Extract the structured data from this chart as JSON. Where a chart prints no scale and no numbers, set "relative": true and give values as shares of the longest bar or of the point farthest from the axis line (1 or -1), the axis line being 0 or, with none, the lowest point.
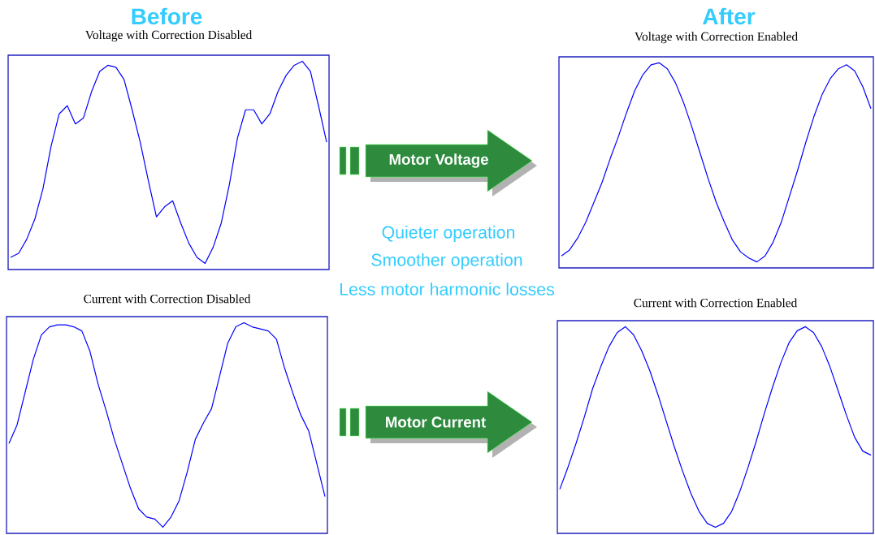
{
  "chart_data": [
    {
      "type": "line",
      "title": "Voltage with Correction Disabled",
      "relative": true,
      "color": "#0000ff",
      "categories": [
        null,
        null,
        null,
        null,
        null,
        null,
        null,
        null,
        null,
        null,
        null,
        null,
        null,
        null,
        null,
        null,
        null,
        null,
        null,
        null,
        null,
        null,
        null,
        null,
        null,
        null,
        null,
        null,
        null,
        null,
        null,
        null,
        null,
        null,
        null,
        null,
        null,
        null,
        null,
        null
      ],
      "values": [
        0.03,
        0.05,
        0.12,
        0.22,
        0.37,
        0.58,
        0.74,
        0.78,
        0.69,
        0.72,
        0.85,
        0.95,
        0.98,
        0.97,
        0.91,
        0.76,
        0.6,
        0.41,
        0.23,
        0.28,
        0.31,
        0.2,
        0.1,
        0.03,
        0,
        0.08,
        0.2,
        0.39,
        0.62,
        0.76,
        0.76,
        0.69,
        0.74,
        0.85,
        0.93,
        0.98,
        1,
        0.95,
        0.78,
        0.6
      ]
    },
    {
      "type": "line",
      "title": "Voltage with Correction Enabled",
      "relative": true,
      "color": "#0000ff",
      "categories": [
        null,
        null,
        null,
        null,
        null,
        null,
        null,
        null,
        null,
        null,
        null,
        null,
        null,
        null,
        null,
        null,
        null,
        null,
        null,
        null,
        null,
        null,
        null,
        null,
        null,
        null,
        null,
        null,
        null,
        null,
        null,
        null,
        null,
        null,
        null,
        null,
        null,
        null,
        null
      ],
      "values": [
        0.03,
        0.06,
        0.12,
        0.2,
        0.3,
        0.4,
        0.52,
        0.63,
        0.75,
        0.86,
        0.94,
        0.99,
        1,
        0.97,
        0.9,
        0.8,
        0.68,
        0.55,
        0.42,
        0.3,
        0.2,
        0.11,
        0.05,
        0.02,
        0,
        0.03,
        0.1,
        0.2,
        0.33,
        0.46,
        0.6,
        0.73,
        0.84,
        0.92,
        0.97,
        0.99,
        0.96,
        0.88,
        0.77
      ]
    },
    {
      "type": "line",
      "title": "Current with Correction Disabled",
      "relative": true,
      "color": "#0000ff",
      "categories": [
        null,
        null,
        null,
        null,
        null,
        null,
        null,
        null,
        null,
        null,
        null,
        null,
        null,
        null,
        null,
        null,
        null,
        null,
        null,
        null,
        null,
        null,
        null,
        null,
        null,
        null,
        null,
        null,
        null,
        null,
        null,
        null,
        null,
        null,
        null,
        null,
        null,
        null,
        null,
        null
      ],
      "values": [
        0.41,
        0.5,
        0.66,
        0.82,
        0.94,
        0.98,
        0.99,
        0.99,
        0.98,
        0.96,
        0.86,
        0.7,
        0.57,
        0.43,
        0.31,
        0.19,
        0.09,
        0.05,
        0.04,
        0,
        0.05,
        0.13,
        0.27,
        0.43,
        0.51,
        0.58,
        0.74,
        0.9,
        0.98,
        1,
        0.98,
        0.97,
        0.96,
        0.92,
        0.78,
        0.66,
        0.55,
        0.47,
        0.31,
        0.15
      ]
    },
    {
      "type": "line",
      "title": "Current with Correction Enabled",
      "relative": true,
      "color": "#0000ff",
      "categories": [
        null,
        null,
        null,
        null,
        null,
        null,
        null,
        null,
        null,
        null,
        null,
        null,
        null,
        null,
        null,
        null,
        null,
        null,
        null,
        null,
        null,
        null,
        null,
        null,
        null,
        null,
        null,
        null,
        null,
        null,
        null,
        null,
        null,
        null,
        null,
        null,
        null,
        null,
        null
      ],
      "values": [
        0.19,
        0.3,
        0.42,
        0.55,
        0.69,
        0.8,
        0.9,
        0.97,
        1,
        0.96,
        0.88,
        0.78,
        0.66,
        0.53,
        0.4,
        0.28,
        0.17,
        0.08,
        0.02,
        0,
        0.02,
        0.08,
        0.18,
        0.3,
        0.43,
        0.57,
        0.7,
        0.82,
        0.92,
        0.98,
        1,
        0.97,
        0.9,
        0.8,
        0.68,
        0.56,
        0.45,
        0.38,
        0.36
      ]
    },
    {
      "type": "other",
      "annotations": [
        "Before",
        "After",
        "Motor Voltage",
        "Motor Current",
        "Quieter operation",
        "Smoother operation",
        "Less motor harmonic losses"
      ]
    }
  ]
}
